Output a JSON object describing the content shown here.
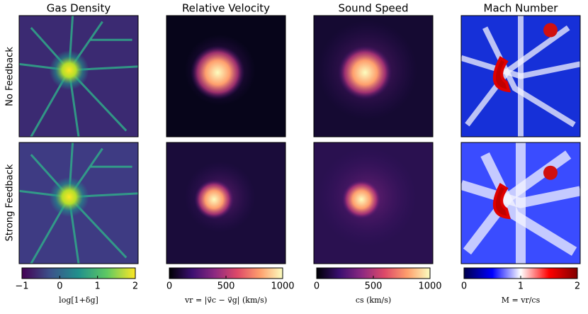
{
  "row_labels": [
    "No Feedback",
    "Strong Feedback"
  ],
  "chart_data": [
    {
      "type": "heatmap",
      "title": "Gas Density",
      "xlabel": "log[1+δg]",
      "xlim": [
        -1,
        2
      ],
      "xticks": [
        {
          "value": -1,
          "label": "−1"
        },
        0,
        1,
        2
      ],
      "colors": [
        "#440154",
        "#3b528b",
        "#21918c",
        "#5ec962",
        "#fde725"
      ]
    },
    {
      "type": "heatmap",
      "title": "Relative Velocity",
      "xlabel": "vr = |v⃗c − v⃗g| (km/s)",
      "xlim": [
        0,
        1000
      ],
      "xticks": [
        0,
        500,
        1000
      ],
      "colors": [
        "#000004",
        "#3b0f70",
        "#8c2981",
        "#de4968",
        "#fe9f6d",
        "#fcfdbf"
      ]
    },
    {
      "type": "heatmap",
      "title": "Sound Speed",
      "xlabel": "cs (km/s)",
      "xlim": [
        0,
        1000
      ],
      "xticks": [
        0,
        500,
        1000
      ],
      "colors": [
        "#000004",
        "#3b0f70",
        "#8c2981",
        "#de4968",
        "#fe9f6d",
        "#fcfdbf"
      ]
    },
    {
      "type": "heatmap",
      "title": "Mach Number",
      "xlabel": "M = vr/cs",
      "xlim": [
        0,
        2
      ],
      "xticks": [
        0,
        1,
        2
      ],
      "colors": [
        "#00004c",
        "#0000ff",
        "#ffffff",
        "#ff0000",
        "#800000"
      ]
    }
  ]
}
